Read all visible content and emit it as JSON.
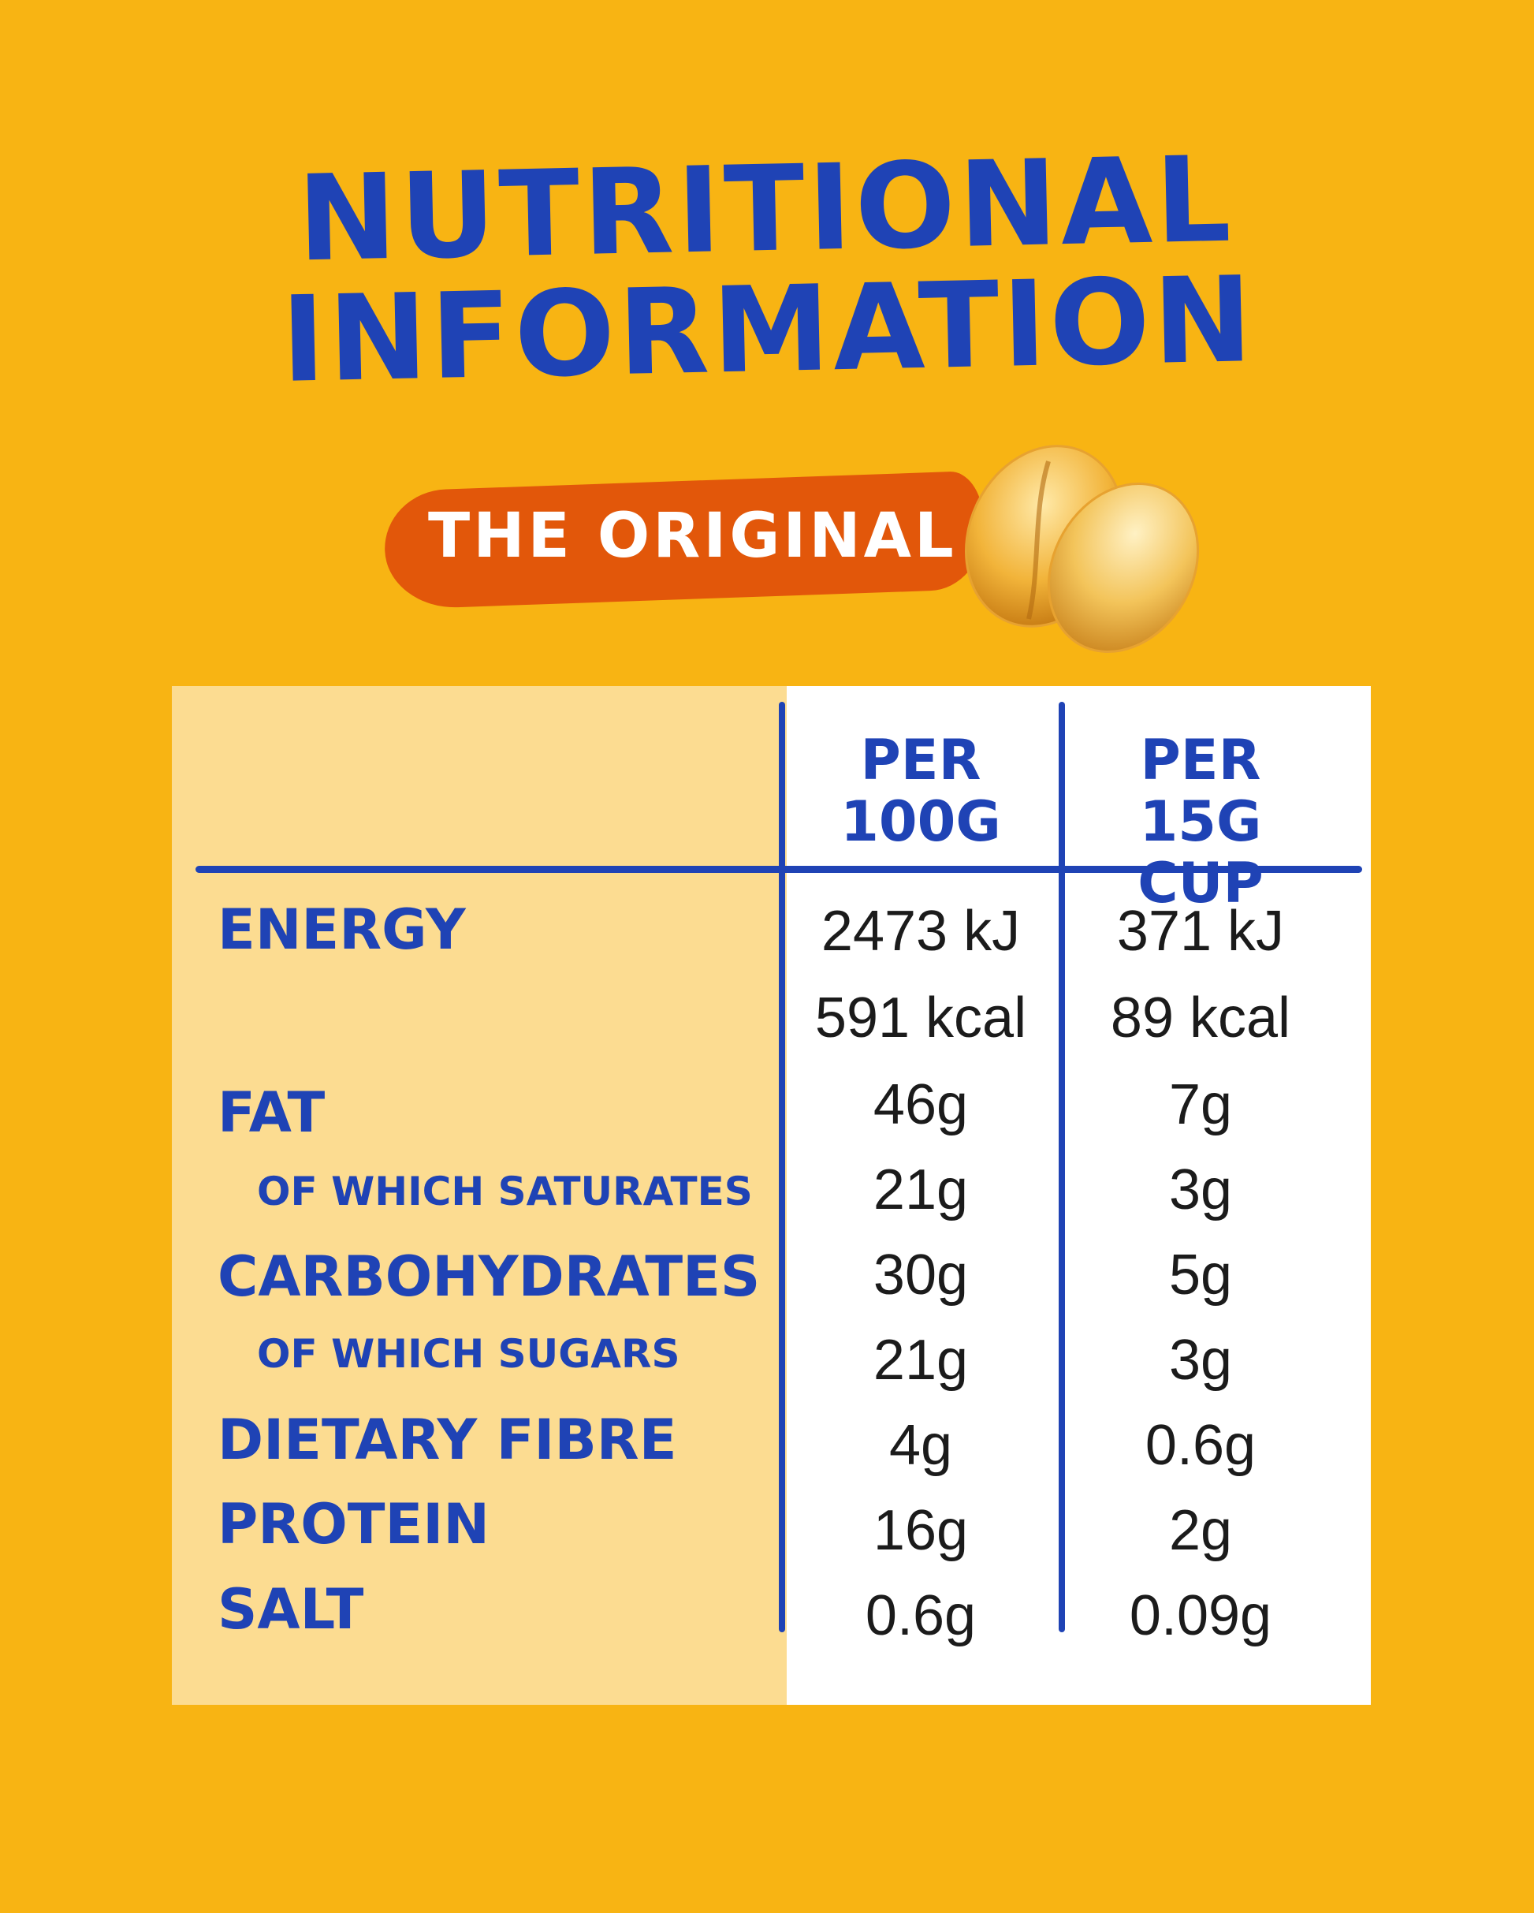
{
  "header": {
    "title_line1": "NUTRITIONAL",
    "title_line2": "INFORMATION",
    "badge_text": "THE ORIGINAL"
  },
  "table": {
    "columns": [
      "PER 100G",
      "PER 15G CUP"
    ],
    "col1_line1": "PER",
    "col1_line2": "100G",
    "col2_line1": "PER 15G",
    "col2_line2": "CUP",
    "rows": [
      {
        "label": "ENERGY",
        "per100g": "2473 kJ",
        "per15g": "371 kJ"
      },
      {
        "label": "",
        "per100g": "591 kcal",
        "per15g": "89 kcal"
      },
      {
        "label": "FAT",
        "per100g": "46g",
        "per15g": "7g"
      },
      {
        "label": "OF WHICH SATURATES",
        "per100g": "21g",
        "per15g": "3g"
      },
      {
        "label": "CARBOHYDRATES",
        "per100g": "30g",
        "per15g": "5g"
      },
      {
        "label": "OF WHICH SUGARS",
        "per100g": "21g",
        "per15g": "3g"
      },
      {
        "label": "DIETARY FIBRE",
        "per100g": "4g",
        "per15g": "0.6g"
      },
      {
        "label": "PROTEIN",
        "per100g": "16g",
        "per15g": "2g"
      },
      {
        "label": "SALT",
        "per100g": "0.6g",
        "per15g": "0.09g"
      }
    ]
  },
  "colors": {
    "background": "#F8B413",
    "title_blue": "#1F43B5",
    "badge_orange": "#E2570A",
    "label_panel": "#FCDC91"
  },
  "icons": [
    "peanut-icon"
  ]
}
